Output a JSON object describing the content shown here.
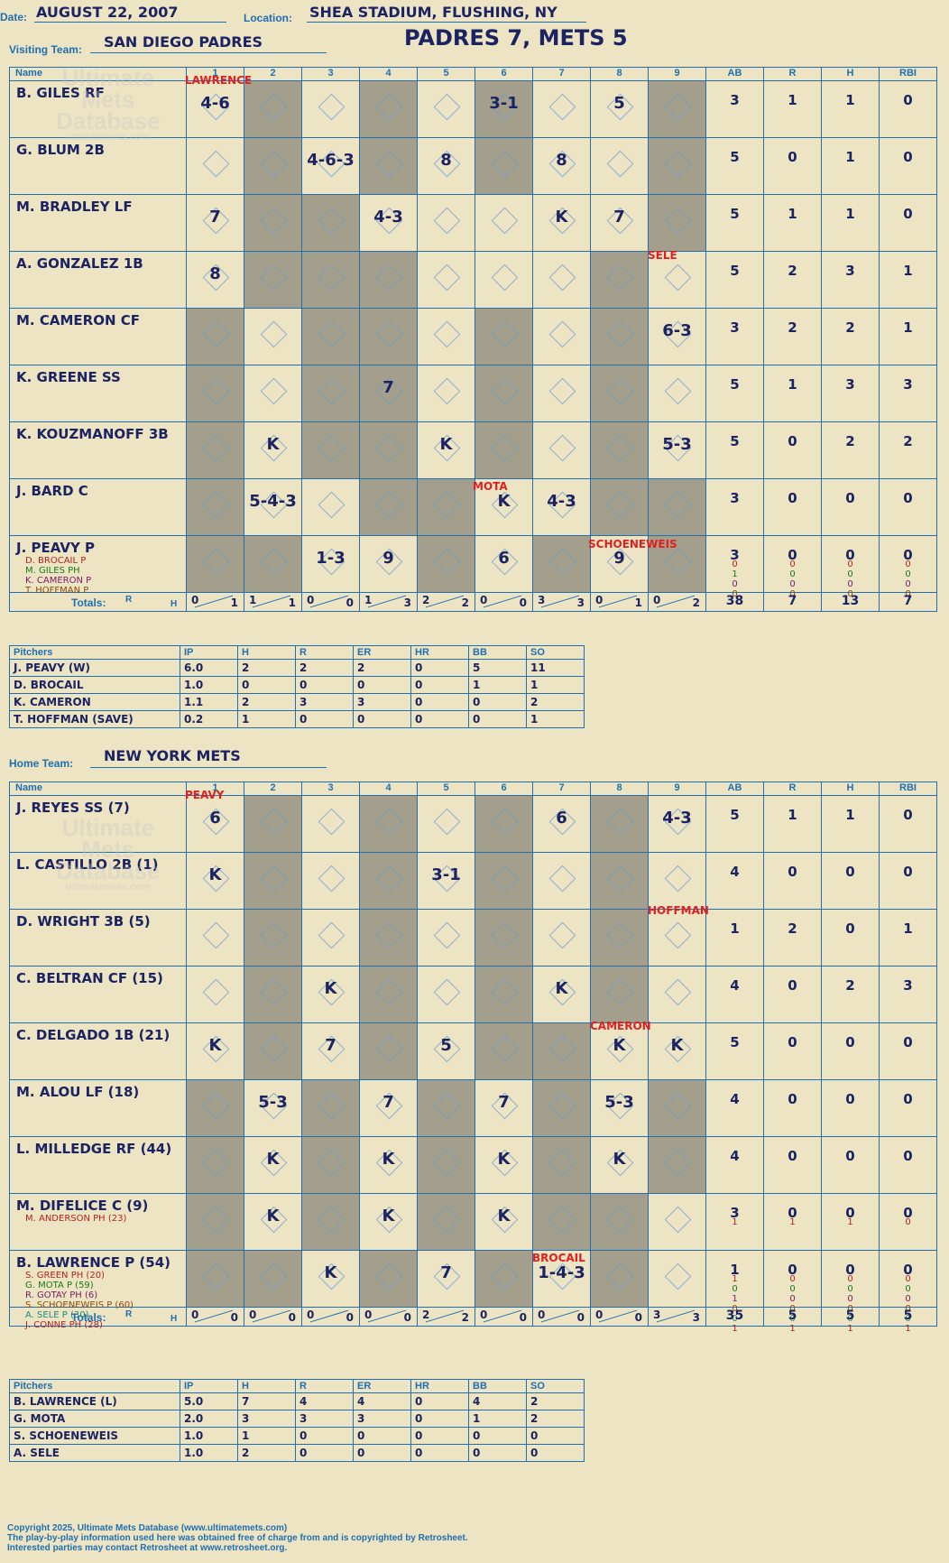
{
  "header": {
    "date_label": "Date:",
    "date": "AUGUST 22, 2007",
    "location_label": "Location:",
    "location": "SHEA STADIUM, FLUSHING, NY",
    "score_title": "PADRES 7, METS 5"
  },
  "watermark": {
    "line1": "Ultimate",
    "line2": "Mets",
    "line3": "Database",
    "site": "ultimatemets.com"
  },
  "visitors": {
    "team_label": "Visiting Team:",
    "team": "SAN DIEGO PADRES",
    "columns": [
      "Name",
      "1",
      "2",
      "3",
      "4",
      "5",
      "6",
      "7",
      "8",
      "9",
      "AB",
      "R",
      "H",
      "RBI"
    ],
    "batters": [
      {
        "name": "B. GILES RF",
        "marks": [
          "4-6",
          "",
          "",
          "",
          "",
          "3-1",
          "",
          "5",
          ""
        ],
        "ab": "3",
        "r": "1",
        "h": "1",
        "rbi": "0",
        "subs": []
      },
      {
        "name": "G. BLUM 2B",
        "marks": [
          "",
          "",
          "4-6-3",
          "",
          "8",
          "",
          "8",
          "",
          ""
        ],
        "ab": "5",
        "r": "0",
        "h": "1",
        "rbi": "0",
        "subs": []
      },
      {
        "name": "M. BRADLEY LF",
        "marks": [
          "7",
          "",
          "",
          "4-3",
          "",
          "",
          "K",
          "7",
          ""
        ],
        "ab": "5",
        "r": "1",
        "h": "1",
        "rbi": "0",
        "subs": []
      },
      {
        "name": "A. GONZALEZ 1B",
        "marks": [
          "8",
          "",
          "",
          "",
          "",
          "",
          "",
          "",
          ""
        ],
        "ab": "5",
        "r": "2",
        "h": "3",
        "rbi": "1",
        "subs": []
      },
      {
        "name": "M. CAMERON CF",
        "marks": [
          "",
          "",
          "",
          "",
          "",
          "",
          "",
          "",
          "6-3"
        ],
        "ab": "3",
        "r": "2",
        "h": "2",
        "rbi": "1",
        "subs": []
      },
      {
        "name": "K. GREENE SS",
        "marks": [
          "",
          "",
          "",
          "7",
          "",
          "",
          "",
          "",
          ""
        ],
        "ab": "5",
        "r": "1",
        "h": "3",
        "rbi": "3",
        "subs": []
      },
      {
        "name": "K. KOUZMANOFF 3B",
        "marks": [
          "",
          "K",
          "",
          "",
          "K",
          "",
          "",
          "",
          "5-3"
        ],
        "ab": "5",
        "r": "0",
        "h": "2",
        "rbi": "2",
        "subs": []
      },
      {
        "name": "J. BARD C",
        "marks": [
          "",
          "5-4-3",
          "",
          "",
          "",
          "K",
          "4-3",
          "",
          ""
        ],
        "ab": "3",
        "r": "0",
        "h": "0",
        "rbi": "0",
        "subs": []
      },
      {
        "name": "J. PEAVY P",
        "marks": [
          "",
          "",
          "1-3",
          "9",
          "",
          "6",
          "",
          "9",
          ""
        ],
        "ab": "3",
        "r": "0",
        "h": "0",
        "rbi": "0",
        "subs": [
          {
            "name": "D. BROCAIL P",
            "color": "#b22222",
            "ab": "0",
            "r": "0",
            "h": "0",
            "rbi": "0"
          },
          {
            "name": "M. GILES PH",
            "color": "#1a7a1a",
            "ab": "1",
            "r": "0",
            "h": "0",
            "rbi": "0"
          },
          {
            "name": "K. CAMERON P",
            "color": "#7a1a6a",
            "ab": "0",
            "r": "0",
            "h": "0",
            "rbi": "0"
          },
          {
            "name": "T. HOFFMAN P",
            "color": "#8a4a10",
            "ab": "0",
            "r": "0",
            "h": "0",
            "rbi": "0"
          }
        ]
      }
    ],
    "pitcher_notes": {
      "lawrence": "LAWRENCE",
      "mota": "MOTA",
      "schoeneweis": "SCHOENEWEIS",
      "sele": "SELE"
    },
    "totals_label": "Totals:",
    "totals_rh": [
      "R",
      "H"
    ],
    "inning_totals": [
      [
        "0",
        "1"
      ],
      [
        "1",
        "1"
      ],
      [
        "0",
        "0"
      ],
      [
        "1",
        "3"
      ],
      [
        "2",
        "2"
      ],
      [
        "0",
        "0"
      ],
      [
        "3",
        "3"
      ],
      [
        "0",
        "1"
      ],
      [
        "0",
        "2"
      ]
    ],
    "totals": {
      "ab": "38",
      "r": "7",
      "h": "13",
      "rbi": "7"
    }
  },
  "visitor_pitching": {
    "columns": [
      "Pitchers",
      "IP",
      "H",
      "R",
      "ER",
      "HR",
      "BB",
      "SO"
    ],
    "rows": [
      [
        "J. PEAVY (W)",
        "6.0",
        "2",
        "2",
        "2",
        "0",
        "5",
        "11"
      ],
      [
        "D. BROCAIL",
        "1.0",
        "0",
        "0",
        "0",
        "0",
        "1",
        "1"
      ],
      [
        "K. CAMERON",
        "1.1",
        "2",
        "3",
        "3",
        "0",
        "0",
        "2"
      ],
      [
        "T. HOFFMAN (SAVE)",
        "0.2",
        "1",
        "0",
        "0",
        "0",
        "0",
        "1"
      ]
    ]
  },
  "home": {
    "team_label": "Home Team:",
    "team": "NEW YORK METS",
    "columns": [
      "Name",
      "1",
      "2",
      "3",
      "4",
      "5",
      "6",
      "7",
      "8",
      "9",
      "AB",
      "R",
      "H",
      "RBI"
    ],
    "batters": [
      {
        "name": "J. REYES SS (7)",
        "marks": [
          "6",
          "",
          "",
          "",
          "",
          "",
          "6",
          "",
          "4-3"
        ],
        "ab": "5",
        "r": "1",
        "h": "1",
        "rbi": "0",
        "subs": []
      },
      {
        "name": "L. CASTILLO 2B (1)",
        "marks": [
          "K",
          "",
          "",
          "",
          "3-1",
          "",
          "",
          "",
          ""
        ],
        "ab": "4",
        "r": "0",
        "h": "0",
        "rbi": "0",
        "subs": []
      },
      {
        "name": "D. WRIGHT 3B (5)",
        "marks": [
          "",
          "",
          "",
          "",
          "",
          "",
          "",
          "",
          ""
        ],
        "ab": "1",
        "r": "2",
        "h": "0",
        "rbi": "1",
        "subs": []
      },
      {
        "name": "C. BELTRAN CF (15)",
        "marks": [
          "",
          "",
          "K",
          "",
          "",
          "",
          "K",
          "",
          ""
        ],
        "ab": "4",
        "r": "0",
        "h": "2",
        "rbi": "3",
        "subs": []
      },
      {
        "name": "C. DELGADO 1B (21)",
        "marks": [
          "K",
          "",
          "7",
          "",
          "5",
          "",
          "",
          "K",
          "K"
        ],
        "ab": "5",
        "r": "0",
        "h": "0",
        "rbi": "0",
        "subs": []
      },
      {
        "name": "M. ALOU LF (18)",
        "marks": [
          "",
          "5-3",
          "",
          "7",
          "",
          "7",
          "",
          "5-3",
          ""
        ],
        "ab": "4",
        "r": "0",
        "h": "0",
        "rbi": "0",
        "subs": []
      },
      {
        "name": "L. MILLEDGE RF (44)",
        "marks": [
          "",
          "K",
          "",
          "K",
          "",
          "K",
          "",
          "K",
          ""
        ],
        "ab": "4",
        "r": "0",
        "h": "0",
        "rbi": "0",
        "subs": []
      },
      {
        "name": "M. DIFELICE C (9)",
        "marks": [
          "",
          "K",
          "",
          "K",
          "",
          "K",
          "",
          "",
          ""
        ],
        "ab": "3",
        "r": "0",
        "h": "0",
        "rbi": "0",
        "subs": [
          {
            "name": "M. ANDERSON PH (23)",
            "color": "#b22222",
            "ab": "1",
            "r": "1",
            "h": "1",
            "rbi": "0"
          }
        ]
      },
      {
        "name": "B. LAWRENCE P (54)",
        "marks": [
          "",
          "",
          "K",
          "",
          "7",
          "",
          "1-4-3",
          "",
          ""
        ],
        "ab": "1",
        "r": "0",
        "h": "0",
        "rbi": "0",
        "subs": [
          {
            "name": "S. GREEN PH (20)",
            "color": "#b22222",
            "ab": "1",
            "r": "0",
            "h": "0",
            "rbi": "0"
          },
          {
            "name": "G. MOTA P (59)",
            "color": "#1a7a1a",
            "ab": "0",
            "r": "0",
            "h": "0",
            "rbi": "0"
          },
          {
            "name": "R. GOTAY PH (6)",
            "color": "#7a1a6a",
            "ab": "1",
            "r": "0",
            "h": "0",
            "rbi": "0"
          },
          {
            "name": "S. SCHOENEWEIS P (60)",
            "color": "#8a4a10",
            "ab": "0",
            "r": "0",
            "h": "0",
            "rbi": "0"
          },
          {
            "name": "A. SELE P (30)",
            "color": "#1a8a7a",
            "ab": "0",
            "r": "0",
            "h": "0",
            "rbi": "0"
          },
          {
            "name": "J. CONNE PH (28)",
            "color": "#b22222",
            "ab": "1",
            "r": "1",
            "h": "1",
            "rbi": "1"
          }
        ]
      }
    ],
    "pitcher_notes": {
      "peavy": "PEAVY",
      "hoffman": "HOFFMAN",
      "cameron": "CAMERON",
      "brocail": "BROCAIL"
    },
    "totals_label": "Totals:",
    "totals_rh": [
      "R",
      "H"
    ],
    "inning_totals": [
      [
        "0",
        "0"
      ],
      [
        "0",
        "0"
      ],
      [
        "0",
        "0"
      ],
      [
        "0",
        "0"
      ],
      [
        "2",
        "2"
      ],
      [
        "0",
        "0"
      ],
      [
        "0",
        "0"
      ],
      [
        "0",
        "0"
      ],
      [
        "3",
        "3"
      ]
    ],
    "totals": {
      "ab": "35",
      "r": "5",
      "h": "5",
      "rbi": "5"
    }
  },
  "home_pitching": {
    "columns": [
      "Pitchers",
      "IP",
      "H",
      "R",
      "ER",
      "HR",
      "BB",
      "SO"
    ],
    "rows": [
      [
        "B. LAWRENCE (L)",
        "5.0",
        "7",
        "4",
        "4",
        "0",
        "4",
        "2"
      ],
      [
        "G. MOTA",
        "2.0",
        "3",
        "3",
        "3",
        "0",
        "1",
        "2"
      ],
      [
        "S. SCHOENEWEIS",
        "1.0",
        "1",
        "0",
        "0",
        "0",
        "0",
        "0"
      ],
      [
        "A. SELE",
        "1.0",
        "2",
        "0",
        "0",
        "0",
        "0",
        "0"
      ]
    ]
  },
  "footer": {
    "line1": "Copyright 2025, Ultimate Mets Database (www.ultimatemets.com)",
    "line2": "The play-by-play information used here was obtained free of charge from and is copyrighted by Retrosheet.",
    "line3": "Interested parties may contact Retrosheet at www.retrosheet.org."
  },
  "colors": {
    "ink": "#1c2363",
    "grid": "#1f6fb1",
    "paper": "#ede4c3",
    "shade": "#a39f8c",
    "note": "#e02020"
  }
}
